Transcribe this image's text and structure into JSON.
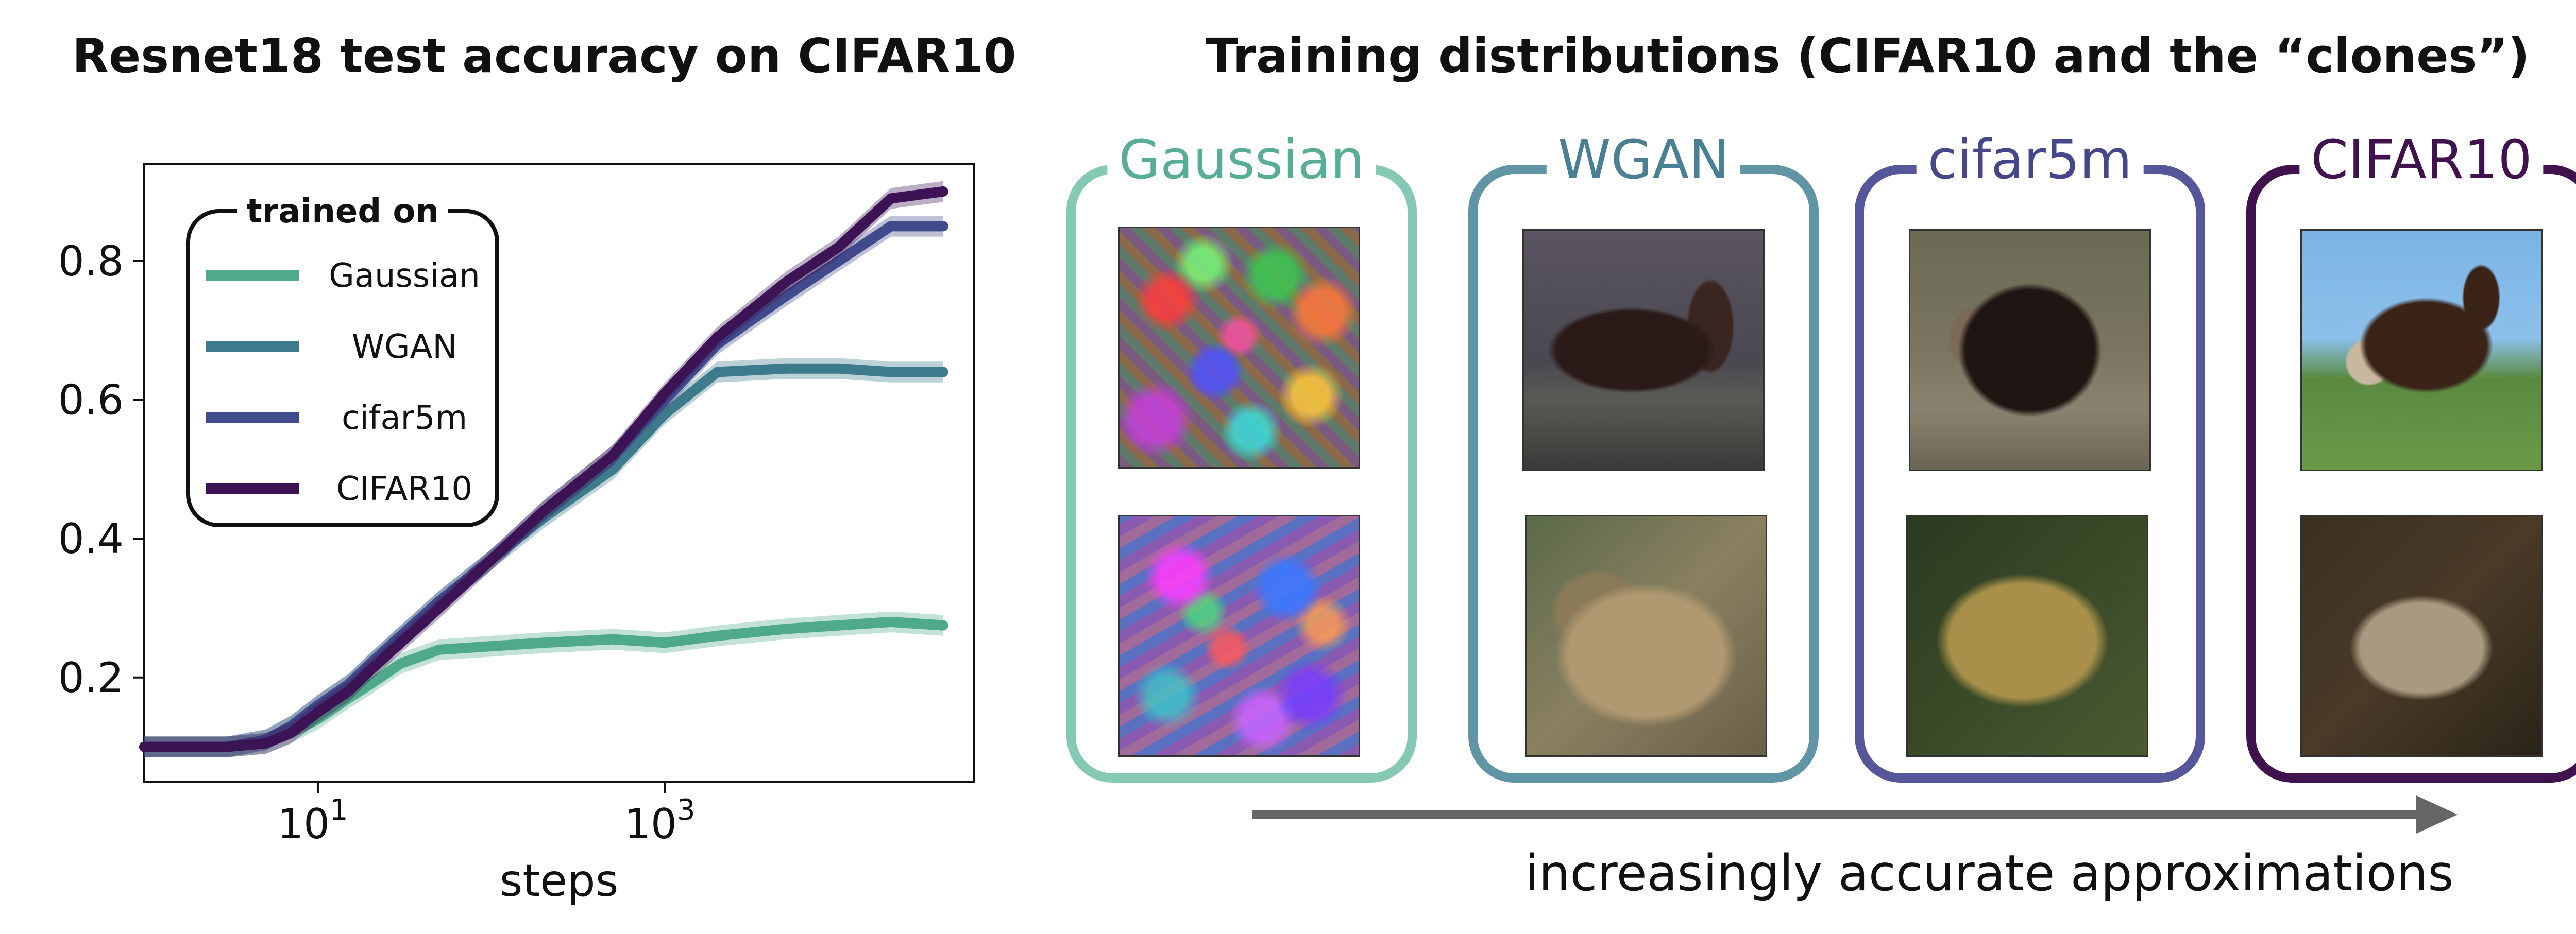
{
  "left_title": "Resnet18 test accuracy on CIFAR10",
  "right_title": "Training distributions (CIFAR10 and the “clones”)",
  "chart_data": {
    "type": "line",
    "title": "Resnet18 test accuracy on CIFAR10",
    "xlabel": "steps",
    "ylabel": "",
    "xscale": "log",
    "xlim": [
      1,
      60000
    ],
    "ylim": [
      0.05,
      0.94
    ],
    "x_ticks": [
      {
        "value": 10,
        "base": "10",
        "exp": "1"
      },
      {
        "value": 1000,
        "base": "10",
        "exp": "3"
      }
    ],
    "y_ticks": [
      {
        "value": 0.2,
        "label": "0.2"
      },
      {
        "value": 0.4,
        "label": "0.4"
      },
      {
        "value": 0.6,
        "label": "0.6"
      },
      {
        "value": 0.8,
        "label": "0.8"
      }
    ],
    "grid": false,
    "legend": {
      "title": "trained on",
      "position": "upper-left"
    },
    "series": [
      {
        "name": "Gaussian",
        "color": "#4fa98b",
        "x": [
          1,
          3,
          5,
          7,
          10,
          15,
          20,
          30,
          50,
          100,
          200,
          500,
          1000,
          2000,
          5000,
          10000,
          20000,
          40000
        ],
        "y": [
          0.1,
          0.1,
          0.105,
          0.12,
          0.14,
          0.17,
          0.19,
          0.22,
          0.24,
          0.245,
          0.25,
          0.255,
          0.25,
          0.26,
          0.27,
          0.275,
          0.28,
          0.275
        ]
      },
      {
        "name": "WGAN",
        "color": "#3d7a8c",
        "x": [
          1,
          3,
          5,
          7,
          10,
          15,
          20,
          30,
          50,
          100,
          200,
          500,
          1000,
          2000,
          5000,
          10000,
          20000,
          40000
        ],
        "y": [
          0.1,
          0.1,
          0.11,
          0.13,
          0.16,
          0.19,
          0.22,
          0.26,
          0.31,
          0.37,
          0.43,
          0.5,
          0.58,
          0.64,
          0.645,
          0.645,
          0.64,
          0.64
        ]
      },
      {
        "name": "cifar5m",
        "color": "#414a8a",
        "x": [
          1,
          3,
          5,
          7,
          10,
          15,
          20,
          30,
          50,
          100,
          200,
          500,
          1000,
          2000,
          5000,
          10000,
          20000,
          40000
        ],
        "y": [
          0.1,
          0.1,
          0.11,
          0.13,
          0.16,
          0.19,
          0.22,
          0.26,
          0.31,
          0.37,
          0.44,
          0.52,
          0.6,
          0.68,
          0.75,
          0.8,
          0.85,
          0.85
        ]
      },
      {
        "name": "CIFAR10",
        "color": "#3c1456",
        "x": [
          1,
          3,
          5,
          7,
          10,
          15,
          20,
          30,
          50,
          100,
          200,
          500,
          1000,
          2000,
          5000,
          10000,
          20000,
          40000
        ],
        "y": [
          0.1,
          0.1,
          0.105,
          0.12,
          0.15,
          0.18,
          0.21,
          0.25,
          0.3,
          0.37,
          0.44,
          0.52,
          0.61,
          0.69,
          0.77,
          0.82,
          0.89,
          0.9
        ]
      }
    ]
  },
  "panels": [
    {
      "label": "Gaussian",
      "color": "#85c9b4",
      "text_color": "#58ad96"
    },
    {
      "label": "WGAN",
      "color": "#5f95a5",
      "text_color": "#4a8094"
    },
    {
      "label": "cifar5m",
      "color": "#55579a",
      "text_color": "#45478a"
    },
    {
      "label": "CIFAR10",
      "color": "#40134f",
      "text_color": "#40134f"
    }
  ],
  "arrow_caption": "increasingly accurate approximations"
}
